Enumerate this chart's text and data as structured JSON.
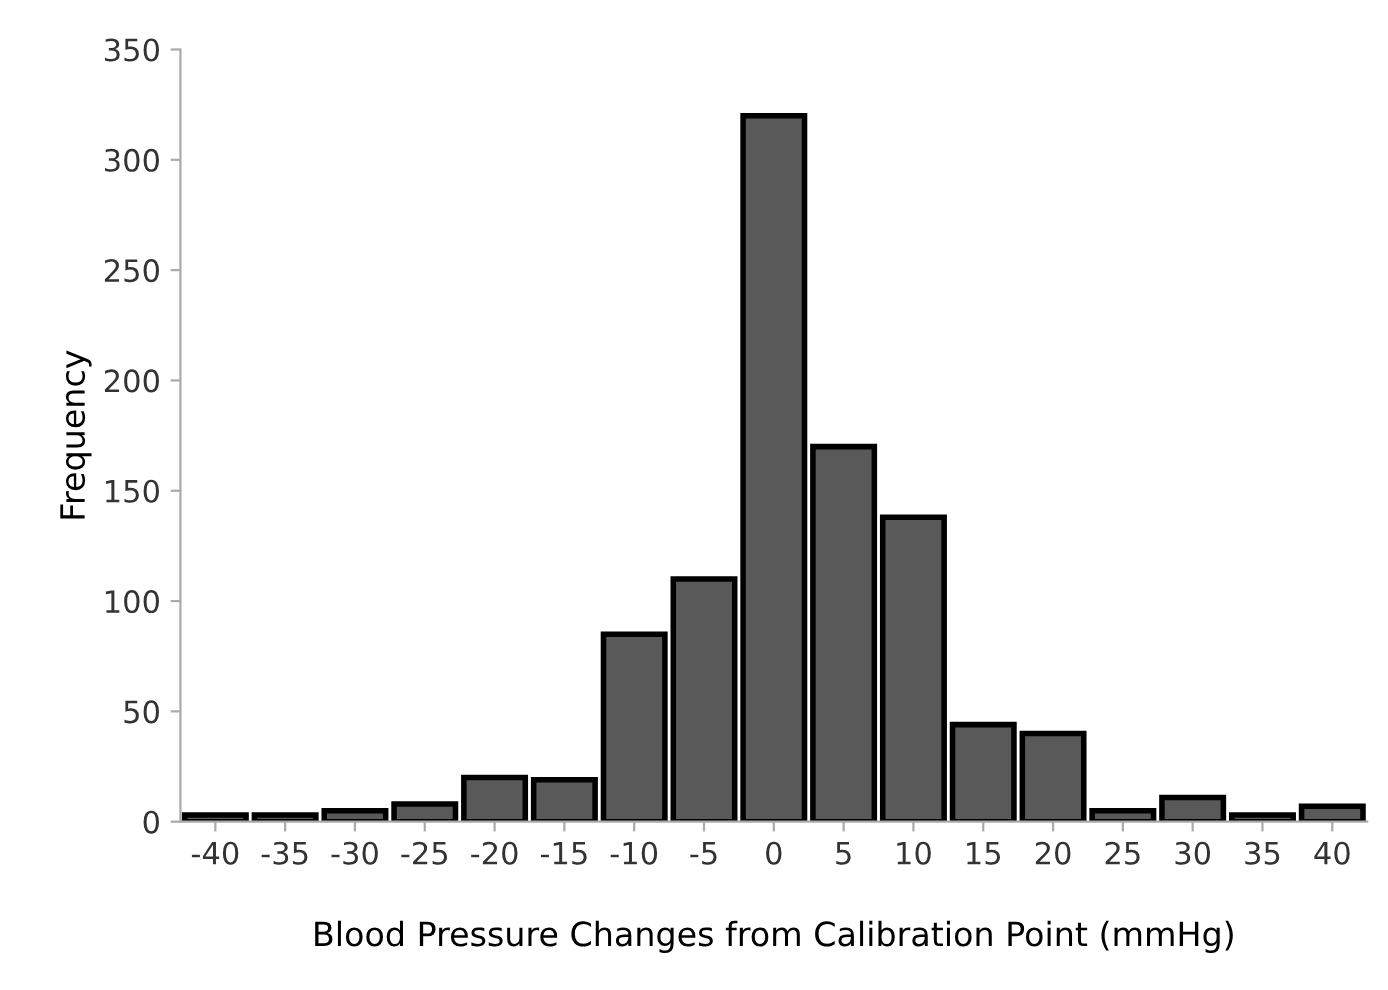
{
  "chart_data": {
    "type": "bar",
    "xlabel": "Blood Pressure Changes from Calibration Point (mmHg)",
    "ylabel": "Frequency",
    "categories": [
      "-40",
      "-35",
      "-30",
      "-25",
      "-20",
      "-15",
      "-10",
      "-5",
      "0",
      "5",
      "10",
      "15",
      "20",
      "25",
      "30",
      "35",
      "40"
    ],
    "values": [
      3,
      3,
      5,
      8,
      20,
      19,
      85,
      110,
      320,
      170,
      138,
      44,
      40,
      5,
      11,
      3,
      7
    ],
    "color": "#595959",
    "ylim": [
      0,
      350
    ],
    "yticks": [
      0,
      50,
      100,
      150,
      200,
      250,
      300,
      350
    ],
    "grid": false,
    "legend": false
  }
}
